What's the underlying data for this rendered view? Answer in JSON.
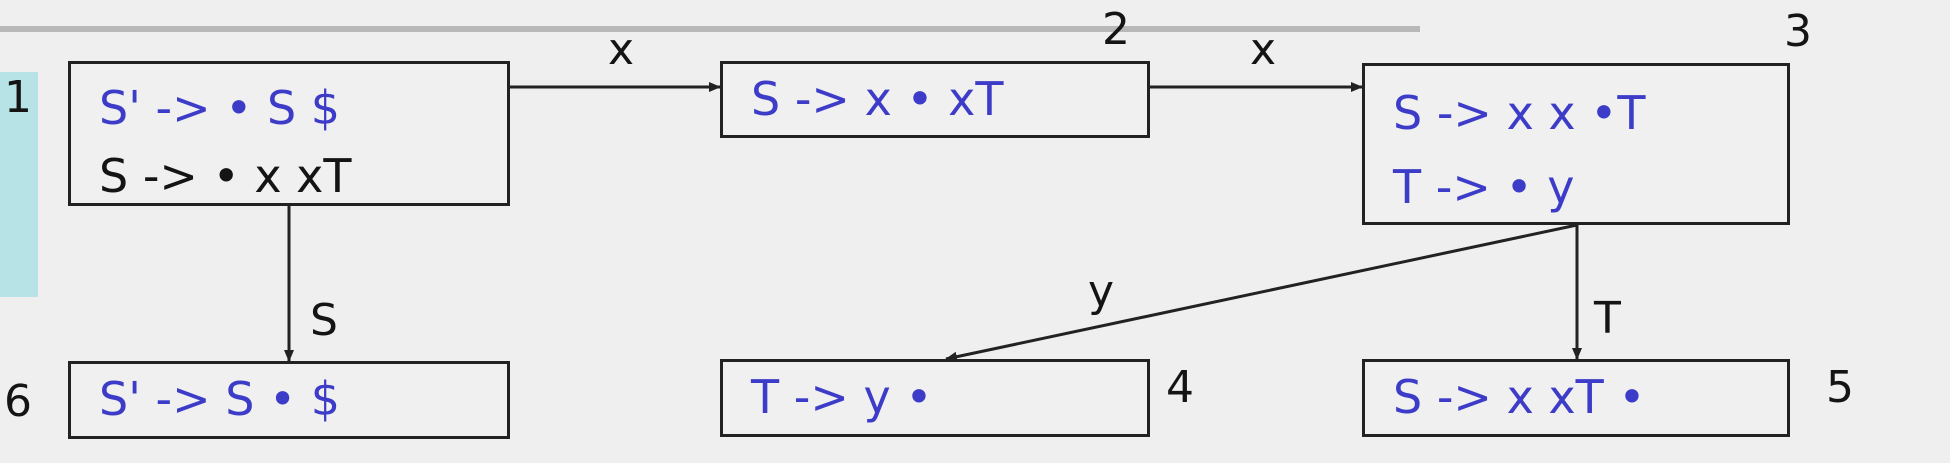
{
  "states": [
    {
      "id": "state-1",
      "number": "1",
      "items": [
        {
          "text": "S' -> • S $",
          "kind": "kernel"
        },
        {
          "text": "S -> • x xT",
          "kind": "closure"
        }
      ]
    },
    {
      "id": "state-2",
      "number": "2",
      "items": [
        {
          "text": "S -> x • xT",
          "kind": "kernel"
        }
      ]
    },
    {
      "id": "state-3",
      "number": "3",
      "items": [
        {
          "text": "S -> x x •T",
          "kind": "kernel"
        },
        {
          "text": "T -> • y",
          "kind": "kernel"
        }
      ]
    },
    {
      "id": "state-4",
      "number": "4",
      "items": [
        {
          "text": "T -> y •",
          "kind": "kernel"
        }
      ]
    },
    {
      "id": "state-5",
      "number": "5",
      "items": [
        {
          "text": "S -> x xT •",
          "kind": "kernel"
        }
      ]
    },
    {
      "id": "state-6",
      "number": "6",
      "items": [
        {
          "text": "S' -> S • $",
          "kind": "kernel"
        }
      ]
    }
  ],
  "transitions": [
    {
      "from": "1",
      "to": "2",
      "label": "x"
    },
    {
      "from": "2",
      "to": "3",
      "label": "x"
    },
    {
      "from": "1",
      "to": "6",
      "label": "S"
    },
    {
      "from": "3",
      "to": "4",
      "label": "y"
    },
    {
      "from": "3",
      "to": "5",
      "label": "T"
    }
  ],
  "colors": {
    "kernel_item": "#3c3cc8",
    "closure_item": "#141414",
    "side_strip": "#b7e3e6",
    "background": "#efefef"
  }
}
